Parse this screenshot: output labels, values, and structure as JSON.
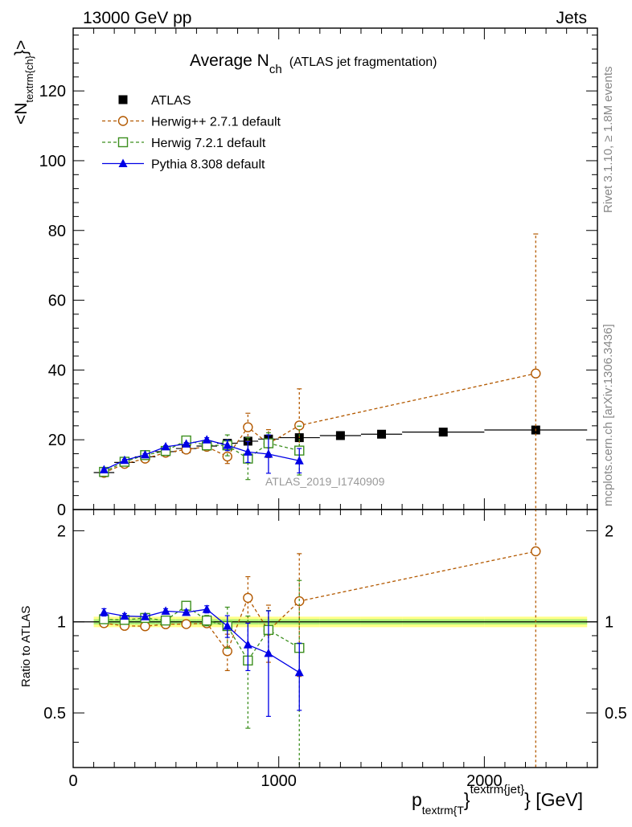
{
  "header": {
    "left": "13000 GeV pp",
    "right": "Jets"
  },
  "plot_title": {
    "main": "Average N",
    "sub": "ch",
    "suffix": "(ATLAS jet fragmentation)"
  },
  "y_title_main": {
    "pre": "<N",
    "sub": "textrm{ch}",
    "post": "}>"
  },
  "y_title_ratio": "Ratio to ATLAS",
  "x_title": {
    "p": "p",
    "sub": "textrm{T",
    "close": "}",
    "sup": "textrm{jet}",
    "unit": "} [GeV]"
  },
  "side_labels": {
    "rivet": "Rivet 3.1.10, ≥ 1.8M events",
    "mcplots": "mcplots.cern.ch [arXiv:1306.3436]"
  },
  "analysis_label": "ATLAS_2019_I1740909",
  "colors": {
    "atlas": "#000000",
    "herwigpp": "#b35900",
    "herwig7": "#3c8f1e",
    "pythia": "#0000e6",
    "band_inner": "#aaee77",
    "band_outer": "#ffff88"
  },
  "chart_data": [
    {
      "type": "scatter",
      "panel": "main",
      "x_range": [
        0,
        2550
      ],
      "ylim": [
        0,
        138
      ],
      "y_ticks": [
        "0",
        "20",
        "40",
        "60",
        "80",
        "100",
        "120"
      ],
      "x_ticks": [
        "0",
        "1000",
        "2000"
      ],
      "legend_position": "top-left",
      "series": [
        {
          "name": "ATLAS",
          "style": "square-filled",
          "x": [
            150,
            250,
            350,
            450,
            550,
            650,
            750,
            850,
            950,
            1100,
            1300,
            1500,
            1800,
            2250
          ],
          "y": [
            10.6,
            13.5,
            15.1,
            16.6,
            17.5,
            18.2,
            19.0,
            19.6,
            20.2,
            20.6,
            21.2,
            21.6,
            22.2,
            22.8
          ],
          "x_err": [
            50,
            50,
            50,
            50,
            50,
            50,
            50,
            50,
            50,
            100,
            100,
            100,
            200,
            250
          ]
        },
        {
          "name": "Herwig++ 2.7.1 default",
          "style": "circle-open-dashed",
          "x": [
            150,
            250,
            350,
            450,
            550,
            650,
            750,
            850,
            950,
            1100,
            2250
          ],
          "y": [
            10.5,
            13.1,
            14.6,
            16.3,
            17.2,
            18.0,
            15.2,
            23.6,
            18.9,
            24.1,
            39.0
          ],
          "y_err": [
            0.3,
            0.3,
            0.3,
            0.3,
            0.4,
            0.6,
            2.0,
            4.0,
            4.0,
            10.5,
            40
          ]
        },
        {
          "name": "Herwig 7.2.1 default",
          "style": "square-open-dashed",
          "x": [
            150,
            250,
            350,
            450,
            550,
            650,
            750,
            850,
            950,
            1100
          ],
          "y": [
            10.8,
            13.7,
            15.6,
            16.8,
            19.8,
            18.4,
            18.4,
            14.6,
            19.0,
            16.9
          ],
          "y_err": [
            0.3,
            0.3,
            0.3,
            0.3,
            0.4,
            0.8,
            3.0,
            6.0,
            3.0,
            7.0
          ]
        },
        {
          "name": "Pythia 8.308 default",
          "style": "triangle-filled-solid",
          "x": [
            150,
            250,
            350,
            450,
            550,
            650,
            750,
            850,
            950,
            1100
          ],
          "y": [
            11.4,
            14.1,
            15.7,
            18.0,
            18.8,
            20.0,
            18.4,
            16.5,
            15.9,
            14.0
          ],
          "y_err": [
            0.3,
            0.3,
            0.3,
            0.3,
            0.4,
            0.6,
            1.5,
            3.0,
            5.5,
            3.5
          ]
        }
      ]
    },
    {
      "type": "scatter",
      "panel": "ratio",
      "x_range": [
        0,
        2550
      ],
      "ylim": [
        0.33,
        2.35
      ],
      "y_ticks": [
        "0.5",
        "1",
        "2"
      ],
      "x_ticks": [
        "0",
        "1000",
        "2000"
      ],
      "series": [
        {
          "name": "ATLAS",
          "style": "band",
          "x": [
            150,
            250,
            350,
            450,
            550,
            650,
            750,
            850,
            950,
            1100,
            1300,
            1500,
            1800,
            2250
          ],
          "y": [
            1,
            1,
            1,
            1,
            1,
            1,
            1,
            1,
            1,
            1,
            1,
            1,
            1,
            1
          ],
          "x_err": [
            50,
            50,
            50,
            50,
            50,
            50,
            50,
            50,
            50,
            100,
            100,
            100,
            200,
            250
          ]
        },
        {
          "name": "Herwig++ 2.7.1 default",
          "style": "circle-open-dashed",
          "x": [
            150,
            250,
            350,
            450,
            550,
            650,
            750,
            850,
            950,
            1100,
            2250
          ],
          "y": [
            0.99,
            0.97,
            0.967,
            0.982,
            0.983,
            0.989,
            0.8,
            1.2,
            0.935,
            1.17,
            1.71
          ],
          "y_err": [
            0.03,
            0.02,
            0.02,
            0.02,
            0.02,
            0.03,
            0.11,
            0.21,
            0.2,
            0.51,
            1.8
          ]
        },
        {
          "name": "Herwig 7.2.1 default",
          "style": "square-open-dashed",
          "x": [
            150,
            250,
            350,
            450,
            550,
            650,
            750,
            850,
            950,
            1100
          ],
          "y": [
            1.02,
            1.015,
            1.03,
            1.01,
            1.13,
            1.01,
            0.968,
            0.745,
            0.94,
            0.82
          ],
          "y_err": [
            0.03,
            0.02,
            0.02,
            0.02,
            0.02,
            0.04,
            0.15,
            0.3,
            0.15,
            0.55
          ]
        },
        {
          "name": "Pythia 8.308 default",
          "style": "triangle-filled-solid",
          "x": [
            150,
            250,
            350,
            450,
            550,
            650,
            750,
            850,
            950,
            1100
          ],
          "y": [
            1.075,
            1.045,
            1.04,
            1.085,
            1.075,
            1.1,
            0.968,
            0.84,
            0.787,
            0.68
          ],
          "y_err": [
            0.03,
            0.02,
            0.02,
            0.02,
            0.02,
            0.03,
            0.08,
            0.15,
            0.3,
            0.17
          ]
        }
      ]
    }
  ]
}
